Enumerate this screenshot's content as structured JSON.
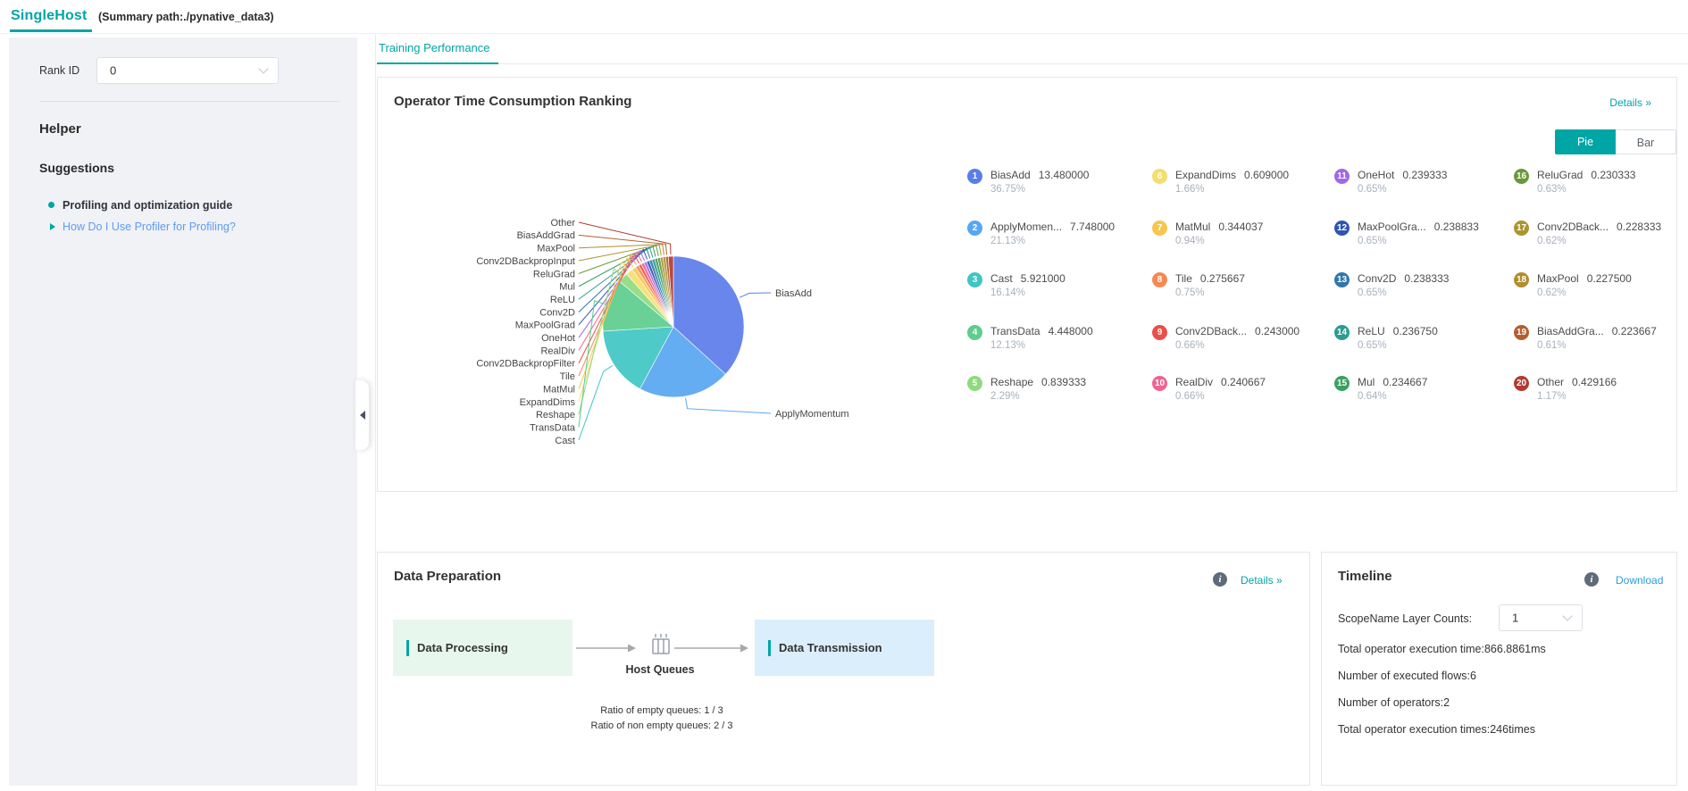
{
  "header": {
    "title": "SingleHost",
    "subtitle": "(Summary path:./pynative_data3)"
  },
  "sidebar": {
    "rank_label": "Rank ID",
    "rank_value": "0",
    "helper_title": "Helper",
    "suggestions_title": "Suggestions",
    "guide_item": "Profiling and optimization guide",
    "help_link": "How Do I Use Profiler for Profiling?"
  },
  "tabs": {
    "training": "Training Performance"
  },
  "operator_card": {
    "title": "Operator Time Consumption Ranking",
    "details_label": "Details",
    "pie_label": "Pie",
    "bar_label": "Bar"
  },
  "chart_data": {
    "type": "pie",
    "title": "Operator Time Consumption Ranking",
    "start_angle": "top",
    "direction": "clockwise",
    "legend_position": "right-grid-4x5",
    "callout_labels": [
      "BiasAdd",
      "ApplyMomentum"
    ],
    "series": [
      {
        "rank": 1,
        "name": "BiasAdd",
        "display": "BiasAdd",
        "value": "13.480000",
        "pct": 36.75,
        "pct_label": "36.75%",
        "color": "#5B7CE9"
      },
      {
        "rank": 2,
        "name": "ApplyMomentum",
        "display": "ApplyMomen...",
        "value": "7.748000",
        "pct": 21.13,
        "pct_label": "21.13%",
        "color": "#58A6F1"
      },
      {
        "rank": 3,
        "name": "Cast",
        "display": "Cast",
        "value": "5.921000",
        "pct": 16.14,
        "pct_label": "16.14%",
        "color": "#3FC6C4"
      },
      {
        "rank": 4,
        "name": "TransData",
        "display": "TransData",
        "value": "4.448000",
        "pct": 12.13,
        "pct_label": "12.13%",
        "color": "#5CCD8D"
      },
      {
        "rank": 5,
        "name": "Reshape",
        "display": "Reshape",
        "value": "0.839333",
        "pct": 2.29,
        "pct_label": "2.29%",
        "color": "#8FDA7F"
      },
      {
        "rank": 6,
        "name": "ExpandDims",
        "display": "ExpandDims",
        "value": "0.609000",
        "pct": 1.66,
        "pct_label": "1.66%",
        "color": "#F6DE6D"
      },
      {
        "rank": 7,
        "name": "MatMul",
        "display": "MatMul",
        "value": "0.344037",
        "pct": 0.94,
        "pct_label": "0.94%",
        "color": "#F6C64E"
      },
      {
        "rank": 8,
        "name": "Tile",
        "display": "Tile",
        "value": "0.275667",
        "pct": 0.75,
        "pct_label": "0.75%",
        "color": "#F28B52"
      },
      {
        "rank": 9,
        "name": "Conv2DBackpropFilter",
        "display": "Conv2DBack...",
        "value": "0.243000",
        "pct": 0.66,
        "pct_label": "0.66%",
        "color": "#E9504B"
      },
      {
        "rank": 10,
        "name": "RealDiv",
        "display": "RealDiv",
        "value": "0.240667",
        "pct": 0.66,
        "pct_label": "0.66%",
        "color": "#EE6392"
      },
      {
        "rank": 11,
        "name": "OneHot",
        "display": "OneHot",
        "value": "0.239333",
        "pct": 0.65,
        "pct_label": "0.65%",
        "color": "#A168E8"
      },
      {
        "rank": 12,
        "name": "MaxPoolGrad",
        "display": "MaxPoolGra...",
        "value": "0.238833",
        "pct": 0.65,
        "pct_label": "0.65%",
        "color": "#2F55B3"
      },
      {
        "rank": 13,
        "name": "Conv2D",
        "display": "Conv2D",
        "value": "0.238333",
        "pct": 0.65,
        "pct_label": "0.65%",
        "color": "#3177AB"
      },
      {
        "rank": 14,
        "name": "ReLU",
        "display": "ReLU",
        "value": "0.236750",
        "pct": 0.65,
        "pct_label": "0.65%",
        "color": "#2A9C90"
      },
      {
        "rank": 15,
        "name": "Mul",
        "display": "Mul",
        "value": "0.234667",
        "pct": 0.64,
        "pct_label": "0.64%",
        "color": "#3AA061"
      },
      {
        "rank": 16,
        "name": "ReluGrad",
        "display": "ReluGrad",
        "value": "0.230333",
        "pct": 0.63,
        "pct_label": "0.63%",
        "color": "#68993B"
      },
      {
        "rank": 17,
        "name": "Conv2DBackpropInput",
        "display": "Conv2DBack...",
        "value": "0.228333",
        "pct": 0.62,
        "pct_label": "0.62%",
        "color": "#AA962F"
      },
      {
        "rank": 18,
        "name": "MaxPool",
        "display": "MaxPool",
        "value": "0.227500",
        "pct": 0.62,
        "pct_label": "0.62%",
        "color": "#B28D2C"
      },
      {
        "rank": 19,
        "name": "BiasAddGrad",
        "display": "BiasAddGra...",
        "value": "0.223667",
        "pct": 0.61,
        "pct_label": "0.61%",
        "color": "#B15F2F"
      },
      {
        "rank": 20,
        "name": "Other",
        "display": "Other",
        "value": "0.429166",
        "pct": 1.17,
        "pct_label": "1.17%",
        "color": "#B13A35"
      }
    ]
  },
  "data_prep": {
    "title": "Data Preparation",
    "details_label": "Details",
    "processing_label": "Data Processing",
    "host_queues_label": "Host Queues",
    "transmission_label": "Data Transmission",
    "ratios": [
      "Ratio of empty queues: 1 / 3",
      "Ratio of non empty queues: 2 / 3"
    ]
  },
  "timeline": {
    "title": "Timeline",
    "download_label": "Download",
    "scope_label": "ScopeName Layer Counts:",
    "scope_value": "1",
    "stats": [
      "Total operator execution time:866.8861ms",
      "Number of executed flows:6",
      "Number of operators:2",
      "Total operator execution times:246times"
    ]
  },
  "icons": {
    "info": "i",
    "details_chevron": "»"
  },
  "colors": {
    "accent": "#00a5a5",
    "suggestion_link": "#5e9bf7",
    "download_link": "#2d9cdb"
  }
}
